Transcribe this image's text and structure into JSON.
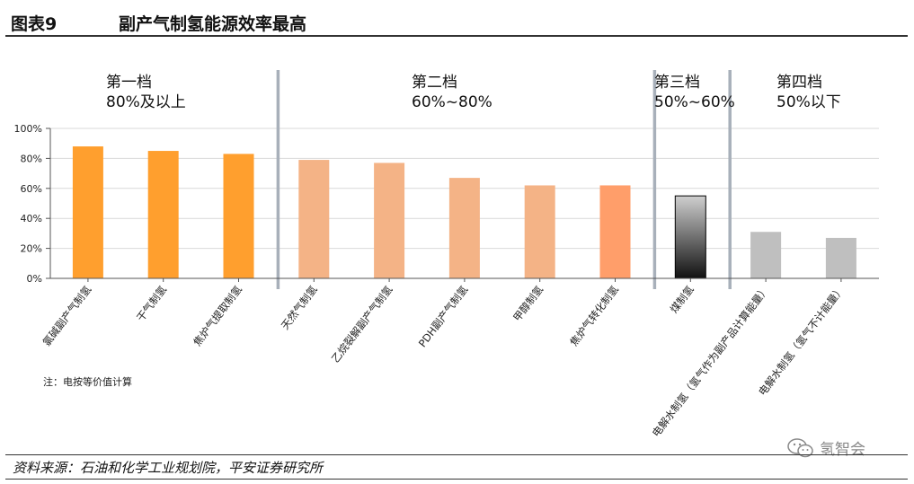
{
  "figure": {
    "number": "图表9",
    "title": "副产气制氢能源效率最高"
  },
  "note": "注：电按等价值计算",
  "source": "资料来源：石油和化学工业规划院，平安证券研究所",
  "watermark": {
    "icon": "wechat-icon",
    "text": "氢智会"
  },
  "colors": {
    "tier1": "#FF9F2E",
    "tier2": "#F4B386",
    "tier2_highlight": "#FF9E6A",
    "tier3_top": "#CFCFCF",
    "tier3_bottom": "#111111",
    "tier4": "#BFBFBF",
    "divider": "#A8B0BA",
    "grid": "#D9D9D9",
    "axis": "#555555"
  },
  "chart_data": {
    "type": "bar",
    "title": "",
    "xlabel": "",
    "ylabel": "",
    "ylim": [
      0,
      100
    ],
    "yticks": [
      "0%",
      "20%",
      "40%",
      "60%",
      "80%",
      "100%"
    ],
    "grid": true,
    "categories": [
      "氯碱副产气制氢",
      "干气制氢",
      "焦炉气提取制氢",
      "天然气制氢",
      "乙烷裂解副产气制氢",
      "PDH副产气制氢",
      "甲醇制氢",
      "焦炉气转化制氢",
      "煤制氢",
      "电解水制氢（氢气作为副产品计算能量）",
      "电解水制氢（氢气不计能量）"
    ],
    "values": [
      88,
      85,
      83,
      79,
      77,
      67,
      62,
      62,
      55,
      31,
      27
    ],
    "tiers": [
      {
        "label": "第一档",
        "range": "80%及以上"
      },
      {
        "label": "第二档",
        "range": "60%~80%"
      },
      {
        "label": "第三档",
        "range": "50%~60%"
      },
      {
        "label": "第四档",
        "range": "50%以下"
      }
    ]
  }
}
